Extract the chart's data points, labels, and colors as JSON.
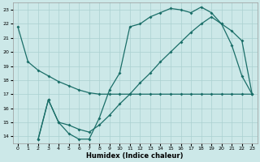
{
  "xlabel": "Humidex (Indice chaleur)",
  "bg_color": "#cce8e8",
  "grid_color": "#aad0d0",
  "line_color": "#1a6e68",
  "xlim": [
    -0.5,
    23.5
  ],
  "ylim": [
    13.5,
    23.5
  ],
  "yticks": [
    14,
    15,
    16,
    17,
    18,
    19,
    20,
    21,
    22,
    23
  ],
  "xticks": [
    0,
    1,
    2,
    3,
    4,
    5,
    6,
    7,
    8,
    9,
    10,
    11,
    12,
    13,
    14,
    15,
    16,
    17,
    18,
    19,
    20,
    21,
    22,
    23
  ],
  "line1_x": [
    0,
    1,
    2,
    3,
    4,
    5,
    6,
    7,
    8,
    9,
    10,
    11,
    12,
    13,
    14,
    15,
    16,
    17,
    18,
    19,
    20,
    21,
    22,
    23
  ],
  "line1_y": [
    21.8,
    19.3,
    18.7,
    18.3,
    17.9,
    17.6,
    17.3,
    17.1,
    17.0,
    17.0,
    17.0,
    17.0,
    17.0,
    17.0,
    17.0,
    17.0,
    17.0,
    17.0,
    17.0,
    17.0,
    17.0,
    17.0,
    17.0,
    17.0
  ],
  "line2_x": [
    2,
    3,
    4,
    5,
    6,
    7,
    8,
    9,
    10,
    11,
    12,
    13,
    14,
    15,
    16,
    17,
    18,
    19,
    20,
    21,
    22,
    23
  ],
  "line2_y": [
    13.8,
    16.6,
    15.0,
    14.2,
    13.8,
    13.8,
    15.3,
    17.3,
    18.5,
    21.8,
    22.0,
    22.5,
    22.8,
    23.1,
    23.0,
    22.8,
    23.2,
    22.8,
    22.0,
    20.5,
    18.3,
    17.0
  ],
  "line3_x": [
    2,
    3,
    4,
    5,
    6,
    7,
    8,
    9,
    10,
    11,
    12,
    13,
    14,
    15,
    16,
    17,
    18,
    19,
    20,
    21,
    22,
    23
  ],
  "line3_y": [
    13.8,
    16.6,
    15.0,
    14.8,
    14.5,
    14.3,
    14.8,
    15.5,
    16.3,
    17.0,
    17.8,
    18.5,
    19.3,
    20.0,
    20.7,
    21.4,
    22.0,
    22.5,
    22.0,
    21.5,
    20.8,
    17.0
  ]
}
